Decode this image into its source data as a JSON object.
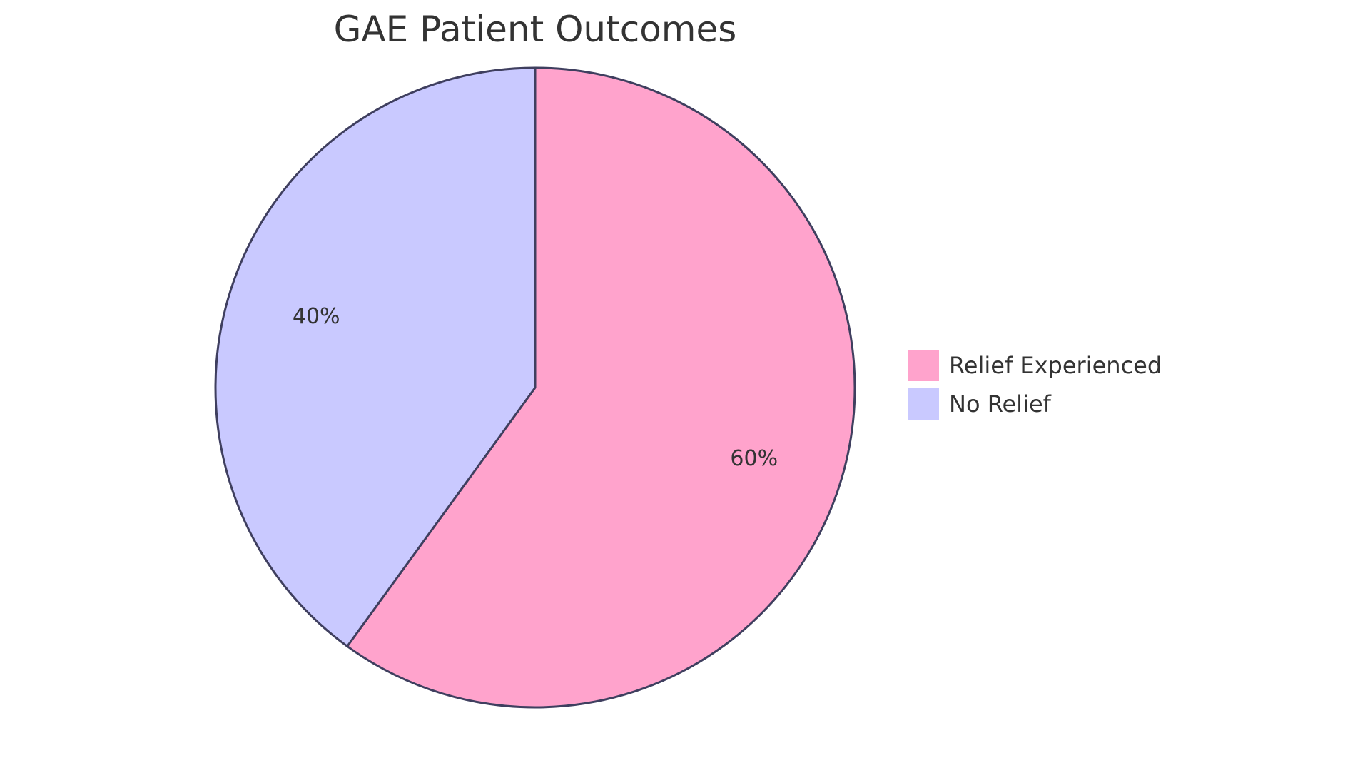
{
  "chart_data": {
    "type": "pie",
    "title": "GAE Patient Outcomes",
    "slices": [
      {
        "label": "Relief Experienced",
        "value": 60,
        "display": "60%",
        "color": "#FFA3CC"
      },
      {
        "label": "No Relief",
        "value": 40,
        "display": "40%",
        "color": "#C9C9FF"
      }
    ],
    "stroke_color": "#3F3F5F",
    "start": "12 o'clock",
    "direction": "clockwise",
    "legend_position": "right"
  }
}
